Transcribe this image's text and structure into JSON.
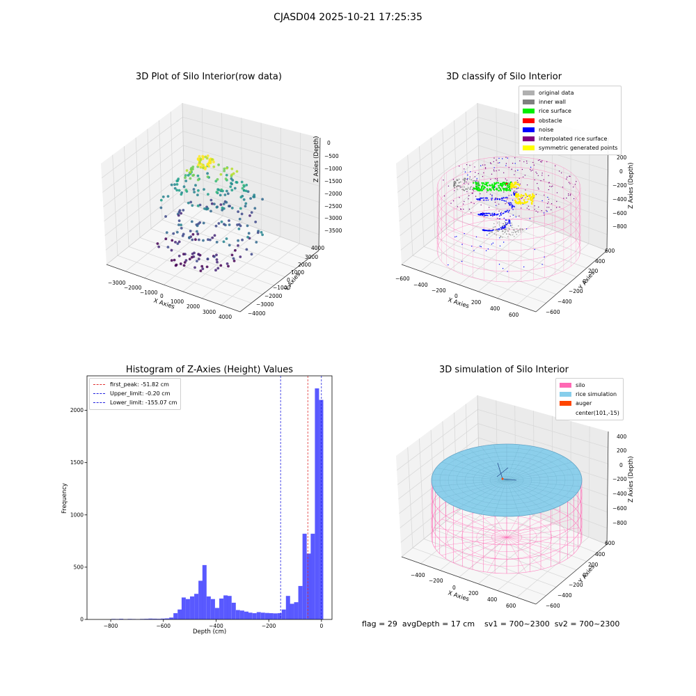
{
  "suptitle": "CJASD04 2025-10-21 17:25:35",
  "footer": "flag = 29  avgDepth = 17 cm    sv1 = 700~2300  sv2 = 700~2300",
  "colors": {
    "histogram_bar": "#5050ff",
    "first_peak_line": "#e03030",
    "limit_lines": "#2020e0",
    "silo": "#ff69b4",
    "rice_simulation": "#87ceeb",
    "auger": "#ff4500"
  },
  "chart_data": [
    {
      "type": "scatter",
      "projection": "3d",
      "title": "3D Plot of Silo Interior(row data)",
      "xlabel": "X Axies",
      "ylabel": "Y Axies",
      "zlabel": "Z Axies (Depth)",
      "x_ticks": [
        "−3000",
        "−2000",
        "−1000",
        "0",
        "1000",
        "2000",
        "3000",
        "4000"
      ],
      "y_ticks": [
        "−4000",
        "−3000",
        "−2000",
        "−1000",
        "0",
        "1000",
        "2000",
        "3000",
        "4000"
      ],
      "z_ticks": [
        "0",
        "−500",
        "−1000",
        "−1500",
        "−2000",
        "−2500",
        "−3000",
        "−3500"
      ],
      "xlim": [
        -3500,
        4500
      ],
      "ylim": [
        -4500,
        4500
      ],
      "zlim": [
        -3700,
        0
      ],
      "colormap": "viridis",
      "grid": true
    },
    {
      "type": "scatter",
      "projection": "3d",
      "title": "3D classify of Silo Interior",
      "xlabel": "X Axies",
      "ylabel": "Y Axies",
      "zlabel": "Z Axies (Depth)",
      "x_ticks": [
        "−600",
        "−400",
        "−200",
        "0",
        "200",
        "400",
        "600"
      ],
      "y_ticks": [
        "−600",
        "−400",
        "−200",
        "0",
        "200",
        "400",
        "600"
      ],
      "z_ticks": [
        "200",
        "0",
        "−200",
        "−400",
        "−600",
        "−800"
      ],
      "grid": true,
      "legend_position": "top-right",
      "legend": [
        {
          "label": "original data",
          "color": "#b0b0b0"
        },
        {
          "label": "inner wall",
          "color": "#808080"
        },
        {
          "label": "rice surface",
          "color": "#00ee00"
        },
        {
          "label": "obstacle",
          "color": "#ff0000"
        },
        {
          "label": "noise",
          "color": "#0000ff"
        },
        {
          "label": "interpolated rice surface",
          "color": "#800080"
        },
        {
          "label": "symmetric generated points",
          "color": "#ffff00"
        }
      ]
    },
    {
      "type": "bar",
      "title": "Histogram of Z-Axies (Height) Values",
      "xlabel": "Depth (cm)",
      "ylabel": "Frequency",
      "xlim": [
        -890,
        40
      ],
      "ylim": [
        0,
        2330
      ],
      "x_ticks": [
        -800,
        -600,
        -400,
        -200,
        0
      ],
      "x_tick_labels": [
        "−800",
        "−600",
        "−400",
        "−200",
        "0"
      ],
      "y_ticks": [
        0,
        500,
        1000,
        1500,
        2000
      ],
      "y_tick_labels": [
        "0",
        "500",
        "1000",
        "1500",
        "2000"
      ],
      "bin_width": 15.8,
      "bins": [
        {
          "x": -790,
          "value": 5
        },
        {
          "x": -775,
          "value": 4
        },
        {
          "x": -760,
          "value": 6
        },
        {
          "x": -744,
          "value": 3
        },
        {
          "x": -728,
          "value": 5
        },
        {
          "x": -713,
          "value": 4
        },
        {
          "x": -697,
          "value": 3
        },
        {
          "x": -681,
          "value": 5
        },
        {
          "x": -665,
          "value": 6
        },
        {
          "x": -649,
          "value": 8
        },
        {
          "x": -633,
          "value": 7
        },
        {
          "x": -618,
          "value": 6
        },
        {
          "x": -602,
          "value": 8
        },
        {
          "x": -586,
          "value": 10
        },
        {
          "x": -570,
          "value": 18
        },
        {
          "x": -554,
          "value": 60
        },
        {
          "x": -538,
          "value": 95
        },
        {
          "x": -523,
          "value": 210
        },
        {
          "x": -507,
          "value": 195
        },
        {
          "x": -491,
          "value": 220
        },
        {
          "x": -475,
          "value": 245
        },
        {
          "x": -459,
          "value": 370
        },
        {
          "x": -444,
          "value": 520
        },
        {
          "x": -428,
          "value": 220
        },
        {
          "x": -412,
          "value": 195
        },
        {
          "x": -396,
          "value": 110
        },
        {
          "x": -380,
          "value": 200
        },
        {
          "x": -364,
          "value": 230
        },
        {
          "x": -349,
          "value": 225
        },
        {
          "x": -333,
          "value": 160
        },
        {
          "x": -317,
          "value": 90
        },
        {
          "x": -301,
          "value": 85
        },
        {
          "x": -285,
          "value": 75
        },
        {
          "x": -270,
          "value": 65
        },
        {
          "x": -254,
          "value": 60
        },
        {
          "x": -238,
          "value": 70
        },
        {
          "x": -222,
          "value": 65
        },
        {
          "x": -206,
          "value": 62
        },
        {
          "x": -191,
          "value": 60
        },
        {
          "x": -175,
          "value": 58
        },
        {
          "x": -159,
          "value": 60
        },
        {
          "x": -143,
          "value": 95
        },
        {
          "x": -127,
          "value": 225
        },
        {
          "x": -112,
          "value": 150
        },
        {
          "x": -96,
          "value": 165
        },
        {
          "x": -80,
          "value": 320
        },
        {
          "x": -64,
          "value": 820
        },
        {
          "x": -48,
          "value": 630
        },
        {
          "x": -33,
          "value": 820
        },
        {
          "x": -17,
          "value": 2210
        },
        {
          "x": -1,
          "value": 2100
        }
      ],
      "vlines": [
        {
          "label": "first_peak: -51.82 cm",
          "x": -51.82,
          "color": "#e03030"
        },
        {
          "label": "Upper_limit: -0.20 cm",
          "x": -0.2,
          "color": "#2020e0"
        },
        {
          "label": "Lower_limit: -155.07 cm",
          "x": -155.07,
          "color": "#2020e0"
        }
      ],
      "legend_position": "top-left",
      "grid": false
    },
    {
      "type": "scatter",
      "projection": "3d",
      "title": "3D simulation of Silo Interior",
      "xlabel": "X Axies",
      "ylabel": "Y Axies",
      "zlabel": "Z Axies (Depth)",
      "x_ticks": [
        "−400",
        "−200",
        "0",
        "200",
        "400",
        "600"
      ],
      "y_ticks": [
        "−600",
        "−400",
        "−200",
        "0",
        "200",
        "400",
        "600"
      ],
      "z_ticks": [
        "400",
        "200",
        "0",
        "−200",
        "−400",
        "−600",
        "−800"
      ],
      "grid": true,
      "legend_position": "top-right",
      "legend": [
        {
          "label": "silo",
          "color": "#ff69b4"
        },
        {
          "label": "rice simulation",
          "color": "#87ceeb"
        },
        {
          "label": "auger",
          "color": "#ff4500"
        },
        {
          "label": "center(101,-15)",
          "color": ""
        }
      ]
    }
  ]
}
